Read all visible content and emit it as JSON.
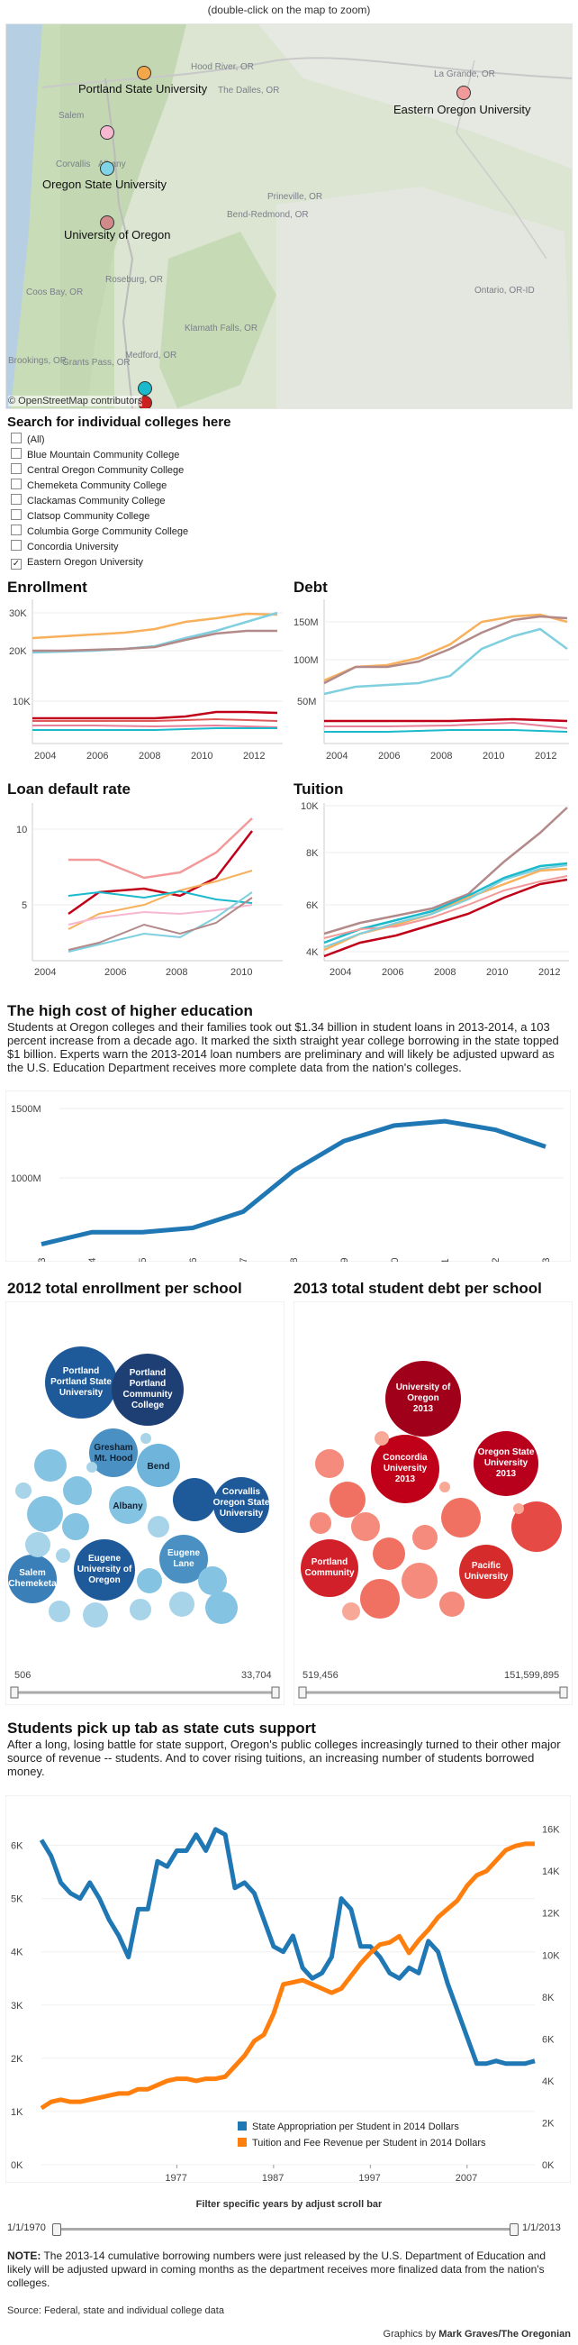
{
  "map": {
    "hint": "(double-click on the map to zoom)",
    "attribution": "© OpenStreetMap contributors",
    "universities": [
      {
        "name": "Portland State University"
      },
      {
        "name": "Eastern Oregon University"
      },
      {
        "name": "Oregon State University"
      },
      {
        "name": "University of Oregon"
      }
    ],
    "cities": [
      "Hood River, OR",
      "The Dalles, OR",
      "La Grande, OR",
      "Salem",
      "Corvallis",
      "Albany",
      "Prineville, OR",
      "Bend-Redmond, OR",
      "Roseburg, OR",
      "Coos Bay, OR",
      "Ontario, OR-ID",
      "Klamath Falls, OR",
      "Grants Pass, OR",
      "Medford, OR",
      "Brookings, OR"
    ]
  },
  "search": {
    "title": "Search for individual colleges here",
    "items": [
      "(All)",
      "Blue Mountain Community College",
      "Central Oregon Community College",
      "Chemeketa Community College",
      "Clackamas Community College",
      "Clatsop Community College",
      "Columbia Gorge Community College",
      "Concordia University",
      "Eastern Oregon University"
    ]
  },
  "charts": {
    "enrollment": {
      "title": "Enrollment",
      "yticks": [
        "30K",
        "20K",
        "10K"
      ],
      "xticks": [
        "2004",
        "2006",
        "2008",
        "2010",
        "2012"
      ]
    },
    "debt": {
      "title": "Debt",
      "yticks": [
        "150M",
        "100M",
        "50M"
      ],
      "xticks": [
        "2004",
        "2006",
        "2008",
        "2010",
        "2012"
      ]
    },
    "default": {
      "title": "Loan default rate",
      "yticks": [
        "10",
        "5"
      ],
      "xticks": [
        "2004",
        "2006",
        "2008",
        "2010"
      ]
    },
    "tuition": {
      "title": "Tuition",
      "yticks": [
        "10K",
        "8K",
        "6K",
        "4K"
      ],
      "xticks": [
        "2004",
        "2006",
        "2008",
        "2010",
        "2012"
      ]
    }
  },
  "cost": {
    "title": "The high cost of higher education",
    "text": "Students at Oregon colleges and their families took out $1.34 billion in student loans in 2013-2014, a 103 percent increase from a decade ago. It marked the sixth straight year college borrowing in the state topped $1 billion.  Experts warn the 2013-2014 loan numbers are preliminary and will likely be adjusted upward as the U.S. Education Department receives more complete data from the nation's colleges."
  },
  "chart_data": [
    {
      "type": "line",
      "title": "The high cost of higher education",
      "x": [
        "2003",
        "2004",
        "2005",
        "2006",
        "2007",
        "2008",
        "2009",
        "2010",
        "2011",
        "2012",
        "2013"
      ],
      "series": [
        {
          "values": [
            660,
            745,
            745,
            775,
            890,
            1180,
            1390,
            1500,
            1530,
            1470,
            1350
          ]
        }
      ],
      "yticks": [
        "1500M",
        "1000M"
      ],
      "ylim": [
        600,
        1620
      ]
    },
    {
      "type": "line",
      "x": [
        1963,
        1964,
        1965,
        1966,
        1967,
        1968,
        1969,
        1970,
        1971,
        1972,
        1973,
        1974,
        1975,
        1976,
        1977,
        1978,
        1979,
        1980,
        1981,
        1982,
        1983,
        1984,
        1985,
        1986,
        1987,
        1988,
        1989,
        1990,
        1991,
        1992,
        1993,
        1994,
        1995,
        1996,
        1997,
        1998,
        1999,
        2000,
        2001,
        2002,
        2003,
        2004,
        2005,
        2006,
        2007,
        2008,
        2009,
        2010,
        2011,
        2012,
        2013,
        2014
      ],
      "series": [
        {
          "name": "State Appropriation per Student in 2014 Dollars",
          "axis": "left",
          "values": [
            6.1,
            5.8,
            5.3,
            5.1,
            5.0,
            5.3,
            5.0,
            4.6,
            4.3,
            3.9,
            4.8,
            4.8,
            5.7,
            5.6,
            5.9,
            5.9,
            6.2,
            5.9,
            6.3,
            6.2,
            5.2,
            5.3,
            5.1,
            4.6,
            4.1,
            4.0,
            4.3,
            3.7,
            3.5,
            3.6,
            3.9,
            5.0,
            4.8,
            4.1,
            4.1,
            3.9,
            3.6,
            3.5,
            3.7,
            3.6,
            4.2,
            4.0,
            3.4,
            2.9,
            2.4,
            1.9,
            1.9,
            1.95,
            1.9,
            1.9,
            1.9,
            1.95
          ]
        },
        {
          "name": "Tuition and Fee Revenue per Student in 2014 Dollars",
          "axis": "right",
          "values": [
            2.7,
            3.0,
            3.1,
            3.0,
            3.0,
            3.1,
            3.2,
            3.3,
            3.4,
            3.4,
            3.6,
            3.6,
            3.8,
            4.0,
            4.1,
            4.1,
            4.0,
            4.1,
            4.1,
            4.2,
            4.7,
            5.2,
            5.9,
            6.2,
            7.2,
            8.6,
            8.7,
            8.8,
            8.6,
            8.4,
            8.2,
            8.4,
            9.0,
            9.6,
            10.1,
            10.5,
            10.6,
            10.9,
            10.1,
            10.7,
            11.2,
            11.8,
            12.2,
            12.6,
            13.3,
            13.8,
            14.0,
            14.5,
            15.0,
            15.2,
            15.3,
            15.3
          ]
        }
      ],
      "left_ticks": [
        "6K",
        "5K",
        "4K",
        "3K",
        "2K",
        "1K",
        "0K"
      ],
      "right_ticks": [
        "16K",
        "14K",
        "12K",
        "10K",
        "8K",
        "6K",
        "4K",
        "2K",
        "0K"
      ],
      "xticks": [
        "1977",
        "1987",
        "1997",
        "2007"
      ]
    }
  ],
  "bubbles": {
    "enroll_title": "2012 total enrollment per school",
    "debt_title": "2013 total student debt per school",
    "enroll_labels": [
      {
        "t1": "Portland",
        "t2": "Portland State",
        "t3": "University"
      },
      {
        "t1": "Portland",
        "t2": "Portland",
        "t3": "Community",
        "t4": "College"
      },
      {
        "t1": "Gresham",
        "t2": "Mt. Hood"
      },
      {
        "t1": "Bend"
      },
      {
        "t1": "Corvallis",
        "t2": "Oregon State",
        "t3": "University"
      },
      {
        "t1": "Albany"
      },
      {
        "t1": "Eugene",
        "t2": "Lane"
      },
      {
        "t1": "Salem",
        "t2": "Chemeketa"
      },
      {
        "t1": "Eugene",
        "t2": "University of",
        "t3": "Oregon"
      }
    ],
    "debt_labels": [
      {
        "t1": "University of",
        "t2": "Oregon",
        "t3": "2013"
      },
      {
        "t1": "Concordia",
        "t2": "University",
        "t3": "2013"
      },
      {
        "t1": "Oregon State",
        "t2": "University",
        "t3": "2013"
      },
      {
        "t1": "Portland",
        "t2": "Community"
      },
      {
        "t1": "Pacific",
        "t2": "University"
      }
    ],
    "enroll_min": "506",
    "enroll_max": "33,704",
    "debt_min": "519,456",
    "debt_max": "151,599,895"
  },
  "state": {
    "title": "Students pick up tab as state cuts support",
    "text": "After a long, losing battle for state support, Oregon's public colleges increasingly turned to their other major source of revenue -- students. And to cover rising tuitions, an increasing number of students borrowed money.",
    "filter_label": "Filter specific years by adjust scroll bar",
    "from": "1/1/1970",
    "to": "1/1/2013"
  },
  "footer": {
    "note_label": "NOTE:",
    "note": " The 2013-14 cumulative borrowing numbers were just released by the U.S. Department of Education and likely will be adjusted upward in coming months as the department receives more finalized data from the nation's colleges.",
    "source": "Source: Federal, state and individual college data",
    "credit_prefix": "Graphics by ",
    "credit": "Mark Graves/The Oregonian"
  },
  "colors": {
    "blue": "#2c7fb8",
    "orange": "#ff7f0e",
    "darkblue": "#1e5a9a",
    "red": "#c00018"
  }
}
